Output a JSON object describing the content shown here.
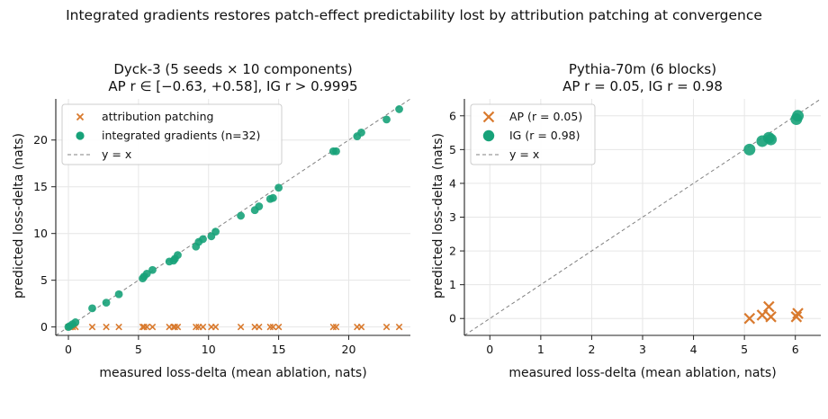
{
  "figure_title": "Integrated gradients restores patch-effect predictability lost by attribution patching at convergence",
  "colors": {
    "ap": "#d97a2e",
    "ig": "#17a279",
    "identity": "#808080",
    "grid": "#e6e6e6"
  },
  "chart_data": [
    {
      "type": "scatter",
      "title": "Dyck-3 (5 seeds × 10 components)",
      "subtitle": "AP r ∈ [−0.63, +0.58], IG r > 0.9995",
      "xlabel": "measured loss-delta (mean ablation, nats)",
      "ylabel": "predicted loss-delta (nats)",
      "xlim": [
        -0.9,
        24.4
      ],
      "ylim": [
        -0.9,
        24.4
      ],
      "xticks": [
        "0",
        "5",
        "10",
        "15",
        "20"
      ],
      "yticks": [
        "0",
        "5",
        "10",
        "15",
        "20"
      ],
      "grid": true,
      "legend_position": "top-left",
      "legend": [
        "attribution patching",
        "integrated gradients (n=32)",
        "y = x"
      ],
      "series": [
        {
          "name": "attribution patching",
          "marker": "x",
          "x": [
            0.0,
            0.1,
            0.3,
            0.5,
            1.7,
            2.7,
            3.6,
            5.3,
            5.4,
            5.6,
            6.0,
            7.2,
            7.5,
            7.6,
            7.8,
            9.1,
            9.3,
            9.6,
            10.2,
            10.5,
            12.3,
            13.3,
            13.6,
            14.4,
            14.6,
            15.0,
            18.9,
            19.1,
            20.6,
            20.9,
            22.7,
            23.6
          ],
          "y": [
            0,
            0,
            0,
            0,
            0,
            0,
            0,
            0,
            0,
            0,
            0,
            0,
            0,
            0,
            0,
            0,
            0,
            0,
            0,
            0,
            0,
            0,
            0,
            0,
            0,
            0,
            0,
            0,
            0,
            0,
            0,
            0
          ]
        },
        {
          "name": "integrated gradients (n=32)",
          "marker": "o",
          "x": [
            0.0,
            0.1,
            0.3,
            0.5,
            1.7,
            2.7,
            3.6,
            5.3,
            5.4,
            5.6,
            6.0,
            7.2,
            7.5,
            7.6,
            7.8,
            9.1,
            9.3,
            9.6,
            10.2,
            10.5,
            12.3,
            13.3,
            13.6,
            14.4,
            14.6,
            15.0,
            18.9,
            19.1,
            20.6,
            20.9,
            22.7,
            23.6
          ],
          "y": [
            0.0,
            0.1,
            0.3,
            0.5,
            2.0,
            2.6,
            3.5,
            5.2,
            5.4,
            5.7,
            6.1,
            7.0,
            7.1,
            7.3,
            7.7,
            8.6,
            9.1,
            9.4,
            9.7,
            10.2,
            11.9,
            12.5,
            12.9,
            13.7,
            13.8,
            14.9,
            18.8,
            18.8,
            20.4,
            20.8,
            22.2,
            23.3
          ]
        },
        {
          "name": "y = x",
          "style": "dashed",
          "x": [
            -0.9,
            24.4
          ],
          "y": [
            -0.9,
            24.4
          ]
        }
      ]
    },
    {
      "type": "scatter",
      "title": "Pythia-70m (6 blocks)",
      "subtitle": "AP r = 0.05, IG r = 0.98",
      "xlabel": "measured loss-delta (mean ablation, nats)",
      "ylabel": "predicted loss-delta (nats)",
      "xlim": [
        -0.5,
        6.5
      ],
      "ylim": [
        -0.5,
        6.5
      ],
      "xticks": [
        "0",
        "1",
        "2",
        "3",
        "4",
        "5",
        "6"
      ],
      "yticks": [
        "0",
        "1",
        "2",
        "3",
        "4",
        "5",
        "6"
      ],
      "grid": true,
      "legend_position": "top-left",
      "legend": [
        "AP (r = 0.05)",
        "IG (r = 0.98)",
        "y = x"
      ],
      "series": [
        {
          "name": "AP (r = 0.05)",
          "marker": "x",
          "x": [
            5.1,
            5.35,
            5.48,
            5.52,
            6.02,
            6.05
          ],
          "y": [
            0.0,
            0.1,
            0.35,
            0.05,
            0.05,
            0.15
          ]
        },
        {
          "name": "IG (r = 0.98)",
          "marker": "o",
          "x": [
            5.1,
            5.35,
            5.48,
            5.52,
            6.02,
            6.05
          ],
          "y": [
            5.0,
            5.25,
            5.35,
            5.3,
            5.9,
            6.0
          ]
        },
        {
          "name": "y = x",
          "style": "dashed",
          "x": [
            -0.5,
            6.5
          ],
          "y": [
            -0.5,
            6.5
          ]
        }
      ]
    }
  ]
}
